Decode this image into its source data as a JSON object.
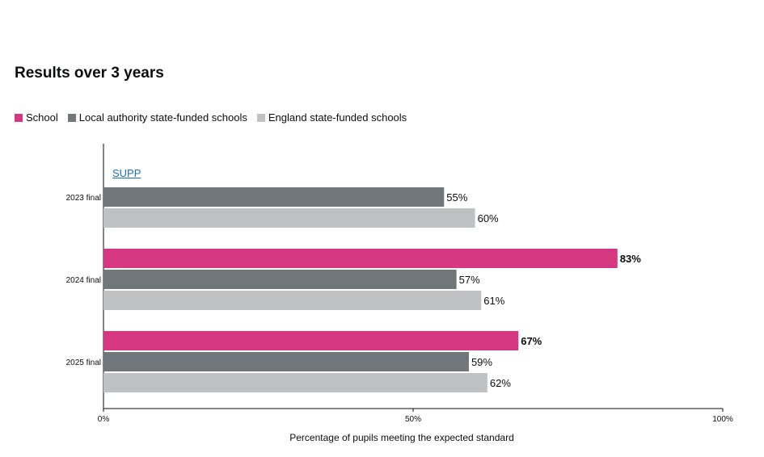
{
  "page": {
    "title": "Results over 3 years"
  },
  "legend": [
    {
      "label": "School",
      "color": "#d53880"
    },
    {
      "label": "Local authority state-funded schools",
      "color": "#6f777b"
    },
    {
      "label": "England state-funded schools",
      "color": "#bfc1c3"
    }
  ],
  "supp_label": "SUPP",
  "chart_data": {
    "type": "bar",
    "orientation": "horizontal",
    "title": "Results over 3 years",
    "xlabel": "Percentage of pupils meeting the expected standard",
    "ylabel": "",
    "xlim": [
      0,
      100
    ],
    "x_ticks": [
      "0%",
      "50%",
      "100%"
    ],
    "categories": [
      "2023 final",
      "2024 final",
      "2025 final"
    ],
    "series": [
      {
        "name": "School",
        "color": "#d53880",
        "values": [
          null,
          83,
          67
        ],
        "labels": [
          "SUPP",
          "83%",
          "67%"
        ]
      },
      {
        "name": "Local authority state-funded schools",
        "color": "#6f777b",
        "values": [
          55,
          57,
          59
        ],
        "labels": [
          "55%",
          "57%",
          "59%"
        ]
      },
      {
        "name": "England state-funded schools",
        "color": "#bfc1c3",
        "values": [
          60,
          61,
          62
        ],
        "labels": [
          "60%",
          "61%",
          "62%"
        ]
      }
    ]
  }
}
